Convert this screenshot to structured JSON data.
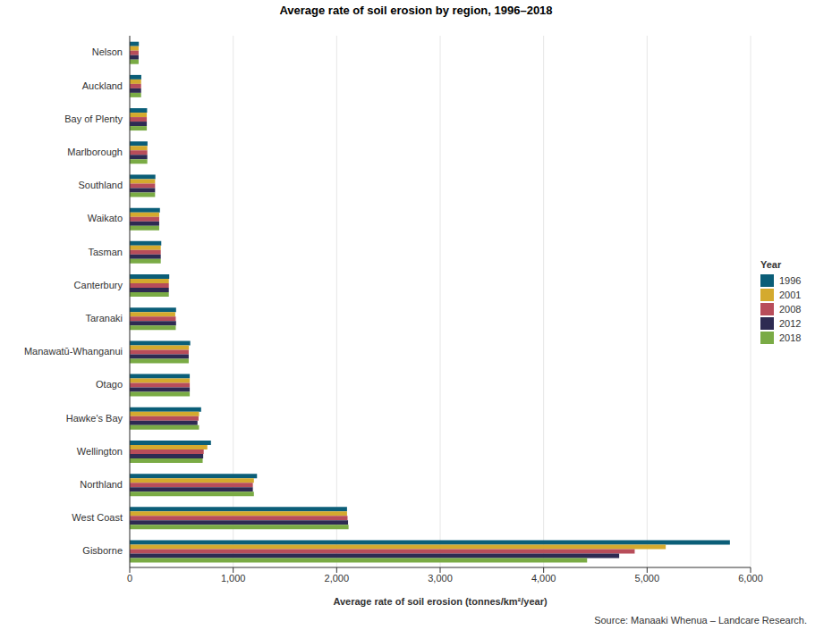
{
  "chart_data": {
    "type": "bar",
    "title": "Average rate of soil erosion by region, 1996–2018",
    "x_label": "Average rate of soil erosion (tonnes/km²/year)",
    "source": "Source: Manaaki Whenua – Landcare Research.",
    "legend_title": "Year",
    "legend": "right",
    "orientation": "horizontal",
    "grid": true,
    "categories": [
      "Nelson",
      "Auckland",
      "Bay of Plenty",
      "Marlborough",
      "Southland",
      "Waikato",
      "Tasman",
      "Canterbury",
      "Taranaki",
      "Manawatū-Whanganui",
      "Otago",
      "Hawke's Bay",
      "Wellington",
      "Northland",
      "West Coast",
      "Gisborne"
    ],
    "series": [
      {
        "name": "1996",
        "color": "#0b5e78",
        "values": [
          88,
          112,
          168,
          172,
          248,
          292,
          305,
          382,
          448,
          585,
          580,
          690,
          785,
          1230,
          2100,
          5800
        ]
      },
      {
        "name": "2001",
        "color": "#d4aa2e",
        "values": [
          86,
          110,
          165,
          170,
          245,
          285,
          300,
          378,
          440,
          572,
          580,
          670,
          750,
          1200,
          2100,
          5180
        ]
      },
      {
        "name": "2008",
        "color": "#b84d5a",
        "values": [
          86,
          110,
          165,
          170,
          245,
          285,
          300,
          378,
          445,
          570,
          580,
          665,
          715,
          1190,
          2105,
          4880
        ]
      },
      {
        "name": "2012",
        "color": "#2e2b52",
        "values": [
          86,
          110,
          165,
          170,
          245,
          285,
          300,
          378,
          448,
          570,
          580,
          655,
          710,
          1190,
          2110,
          4730
        ]
      },
      {
        "name": "2018",
        "color": "#7aab45",
        "values": [
          86,
          110,
          165,
          170,
          245,
          285,
          300,
          378,
          445,
          570,
          580,
          670,
          705,
          1200,
          2115,
          4420
        ]
      }
    ],
    "xlim": [
      0,
      6000
    ],
    "xticks": [
      0,
      {
        "value": 1000,
        "label": "1,000"
      },
      {
        "value": 2000,
        "label": "2,000"
      },
      {
        "value": 3000,
        "label": "3,000"
      },
      {
        "value": 4000,
        "label": "4,000"
      },
      {
        "value": 5000,
        "label": "5,000"
      },
      {
        "value": 6000,
        "label": "6,000"
      }
    ]
  }
}
